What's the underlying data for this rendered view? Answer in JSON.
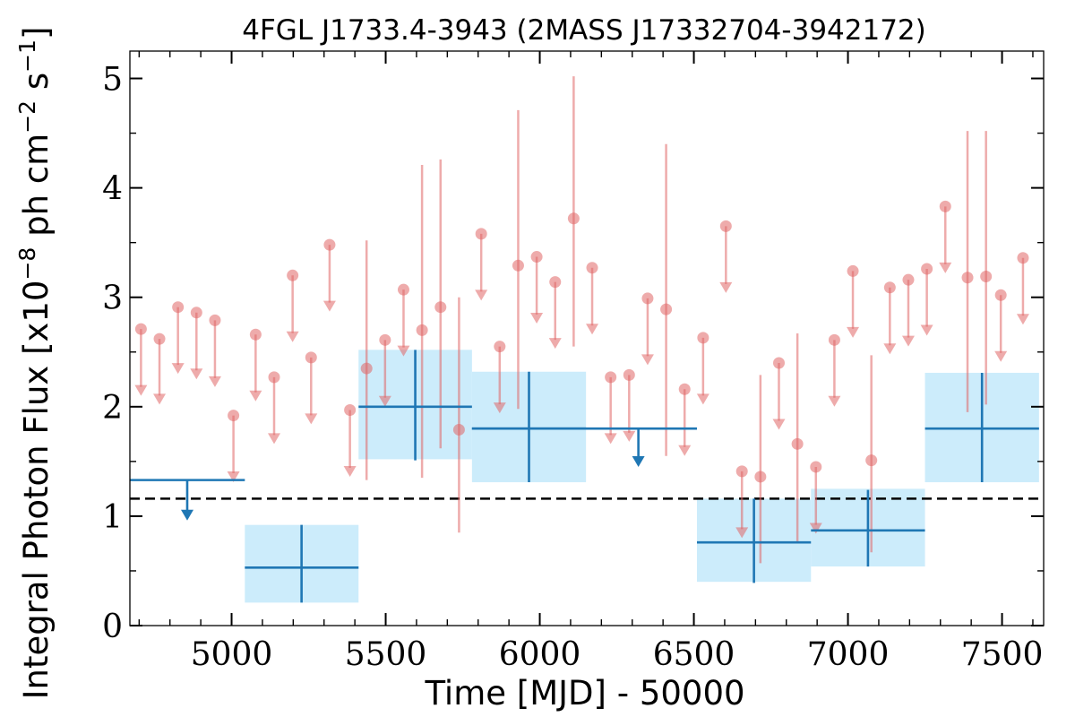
{
  "chart_data": {
    "type": "scatter",
    "title": "4FGL J1733.4-3943 (2MASS J17332704-3942172)",
    "xlabel": "Time [MJD] - 50000",
    "ylabel": {
      "prefix": "Integral Photon Flux [x10",
      "exp1": "−8",
      "mid": " ph cm",
      "exp2": "−2",
      "mid2": " s",
      "exp3": "−1",
      "suffix": "]"
    },
    "xlim": [
      4670,
      7635
    ],
    "ylim": [
      0,
      5.25
    ],
    "xticks": [
      5000,
      5500,
      6000,
      6500,
      7000,
      7500
    ],
    "xtick_labels": [
      "5000",
      "5500",
      "6000",
      "6500",
      "7000",
      "7500"
    ],
    "yticks": [
      0,
      1,
      2,
      3,
      4,
      5
    ],
    "ytick_labels": [
      "0",
      "1",
      "2",
      "3",
      "4",
      "5"
    ],
    "grid": false,
    "colors": {
      "fine": "#e06666",
      "coarse": "#1f77b4",
      "box": "#ccecfb",
      "mean": "#000000"
    },
    "mean_flux": 1.16,
    "fine_bins": {
      "upper_limits": [
        {
          "x": 4706,
          "y": 2.71,
          "y_arrow": 2.1
        },
        {
          "x": 4766,
          "y": 2.62,
          "y_arrow": 2.02
        },
        {
          "x": 4826,
          "y": 2.91,
          "y_arrow": 2.3
        },
        {
          "x": 4886,
          "y": 2.86,
          "y_arrow": 2.25
        },
        {
          "x": 4946,
          "y": 2.79,
          "y_arrow": 2.18
        },
        {
          "x": 5006,
          "y": 1.92,
          "y_arrow": 1.31
        },
        {
          "x": 5078,
          "y": 2.66,
          "y_arrow": 2.05
        },
        {
          "x": 5138,
          "y": 2.27,
          "y_arrow": 1.66
        },
        {
          "x": 5198,
          "y": 3.2,
          "y_arrow": 2.59
        },
        {
          "x": 5258,
          "y": 2.45,
          "y_arrow": 1.84
        },
        {
          "x": 5318,
          "y": 3.48,
          "y_arrow": 2.87
        },
        {
          "x": 5384,
          "y": 1.97,
          "y_arrow": 1.36
        },
        {
          "x": 5498,
          "y": 2.61,
          "y_arrow": 2.0
        },
        {
          "x": 5558,
          "y": 3.07,
          "y_arrow": 2.46
        },
        {
          "x": 5810,
          "y": 3.58,
          "y_arrow": 2.97
        },
        {
          "x": 5870,
          "y": 2.55,
          "y_arrow": 1.94
        },
        {
          "x": 5990,
          "y": 3.37,
          "y_arrow": 2.76
        },
        {
          "x": 6050,
          "y": 3.14,
          "y_arrow": 2.53
        },
        {
          "x": 6170,
          "y": 3.27,
          "y_arrow": 2.66
        },
        {
          "x": 6230,
          "y": 2.27,
          "y_arrow": 1.66
        },
        {
          "x": 6290,
          "y": 2.29,
          "y_arrow": 1.68
        },
        {
          "x": 6350,
          "y": 2.99,
          "y_arrow": 2.38
        },
        {
          "x": 6470,
          "y": 2.16,
          "y_arrow": 1.55
        },
        {
          "x": 6530,
          "y": 2.63,
          "y_arrow": 2.02
        },
        {
          "x": 6604,
          "y": 3.65,
          "y_arrow": 3.04
        },
        {
          "x": 6656,
          "y": 1.41,
          "y_arrow": 0.8
        },
        {
          "x": 6776,
          "y": 2.4,
          "y_arrow": 1.79
        },
        {
          "x": 6896,
          "y": 1.45,
          "y_arrow": 0.84
        },
        {
          "x": 6956,
          "y": 2.61,
          "y_arrow": 2.0
        },
        {
          "x": 7016,
          "y": 3.24,
          "y_arrow": 2.63
        },
        {
          "x": 7136,
          "y": 3.09,
          "y_arrow": 2.48
        },
        {
          "x": 7196,
          "y": 3.16,
          "y_arrow": 2.55
        },
        {
          "x": 7256,
          "y": 3.26,
          "y_arrow": 2.65
        },
        {
          "x": 7316,
          "y": 3.83,
          "y_arrow": 3.22
        },
        {
          "x": 7496,
          "y": 3.02,
          "y_arrow": 2.41
        },
        {
          "x": 7568,
          "y": 3.36,
          "y_arrow": 2.75
        }
      ],
      "detections": [
        {
          "x": 5438,
          "y": 2.35,
          "ylo": 1.33,
          "yhi": 3.52
        },
        {
          "x": 5618,
          "y": 2.7,
          "ylo": 1.35,
          "yhi": 4.21
        },
        {
          "x": 5678,
          "y": 2.91,
          "ylo": 1.62,
          "yhi": 4.26
        },
        {
          "x": 5738,
          "y": 1.79,
          "ylo": 0.85,
          "yhi": 3.0
        },
        {
          "x": 5930,
          "y": 3.29,
          "ylo": 1.98,
          "yhi": 4.71
        },
        {
          "x": 6110,
          "y": 3.72,
          "ylo": 2.55,
          "yhi": 5.02
        },
        {
          "x": 6410,
          "y": 2.89,
          "ylo": 1.55,
          "yhi": 4.4
        },
        {
          "x": 6716,
          "y": 1.36,
          "ylo": 0.57,
          "yhi": 2.29
        },
        {
          "x": 6836,
          "y": 1.66,
          "ylo": 0.76,
          "yhi": 2.67
        },
        {
          "x": 7076,
          "y": 1.51,
          "ylo": 0.67,
          "yhi": 2.47
        },
        {
          "x": 7388,
          "y": 3.18,
          "ylo": 1.95,
          "yhi": 4.52
        },
        {
          "x": 7448,
          "y": 3.19,
          "ylo": 2.02,
          "yhi": 4.52
        }
      ]
    },
    "coarse_bins": {
      "upper_limits": [
        {
          "x0": 4670,
          "x1": 5043,
          "y": 1.33,
          "x": 4856,
          "y_arrow": 0.96
        },
        {
          "x0": 5780,
          "x1": 6510,
          "y": 1.8,
          "x": 6320,
          "y_arrow": 1.45
        }
      ],
      "detections": [
        {
          "x0": 5043,
          "x1": 5412,
          "x": 5227,
          "y": 0.53,
          "ylo": 0.21,
          "yhi": 0.92,
          "box_lo": 0.21,
          "box_hi": 0.92
        },
        {
          "x0": 5412,
          "x1": 5780,
          "x": 5596,
          "y": 2.0,
          "ylo": 1.51,
          "yhi": 2.52,
          "box_lo": 1.52,
          "box_hi": 2.52
        },
        {
          "x0": 5780,
          "x1": 6150,
          "x": 5965,
          "y": 1.8,
          "ylo": 1.31,
          "yhi": 2.32,
          "box_lo": 1.31,
          "box_hi": 2.32
        },
        {
          "x0": 6510,
          "x1": 6880,
          "x": 6695,
          "y": 0.76,
          "ylo": 0.39,
          "yhi": 1.16,
          "box_lo": 0.4,
          "box_hi": 1.16
        },
        {
          "x0": 6880,
          "x1": 7250,
          "x": 7065,
          "y": 0.87,
          "ylo": 0.54,
          "yhi": 1.24,
          "box_lo": 0.54,
          "box_hi": 1.25
        },
        {
          "x0": 7250,
          "x1": 7620,
          "x": 7435,
          "y": 1.8,
          "ylo": 1.31,
          "yhi": 2.31,
          "box_lo": 1.31,
          "box_hi": 2.31
        }
      ]
    }
  }
}
